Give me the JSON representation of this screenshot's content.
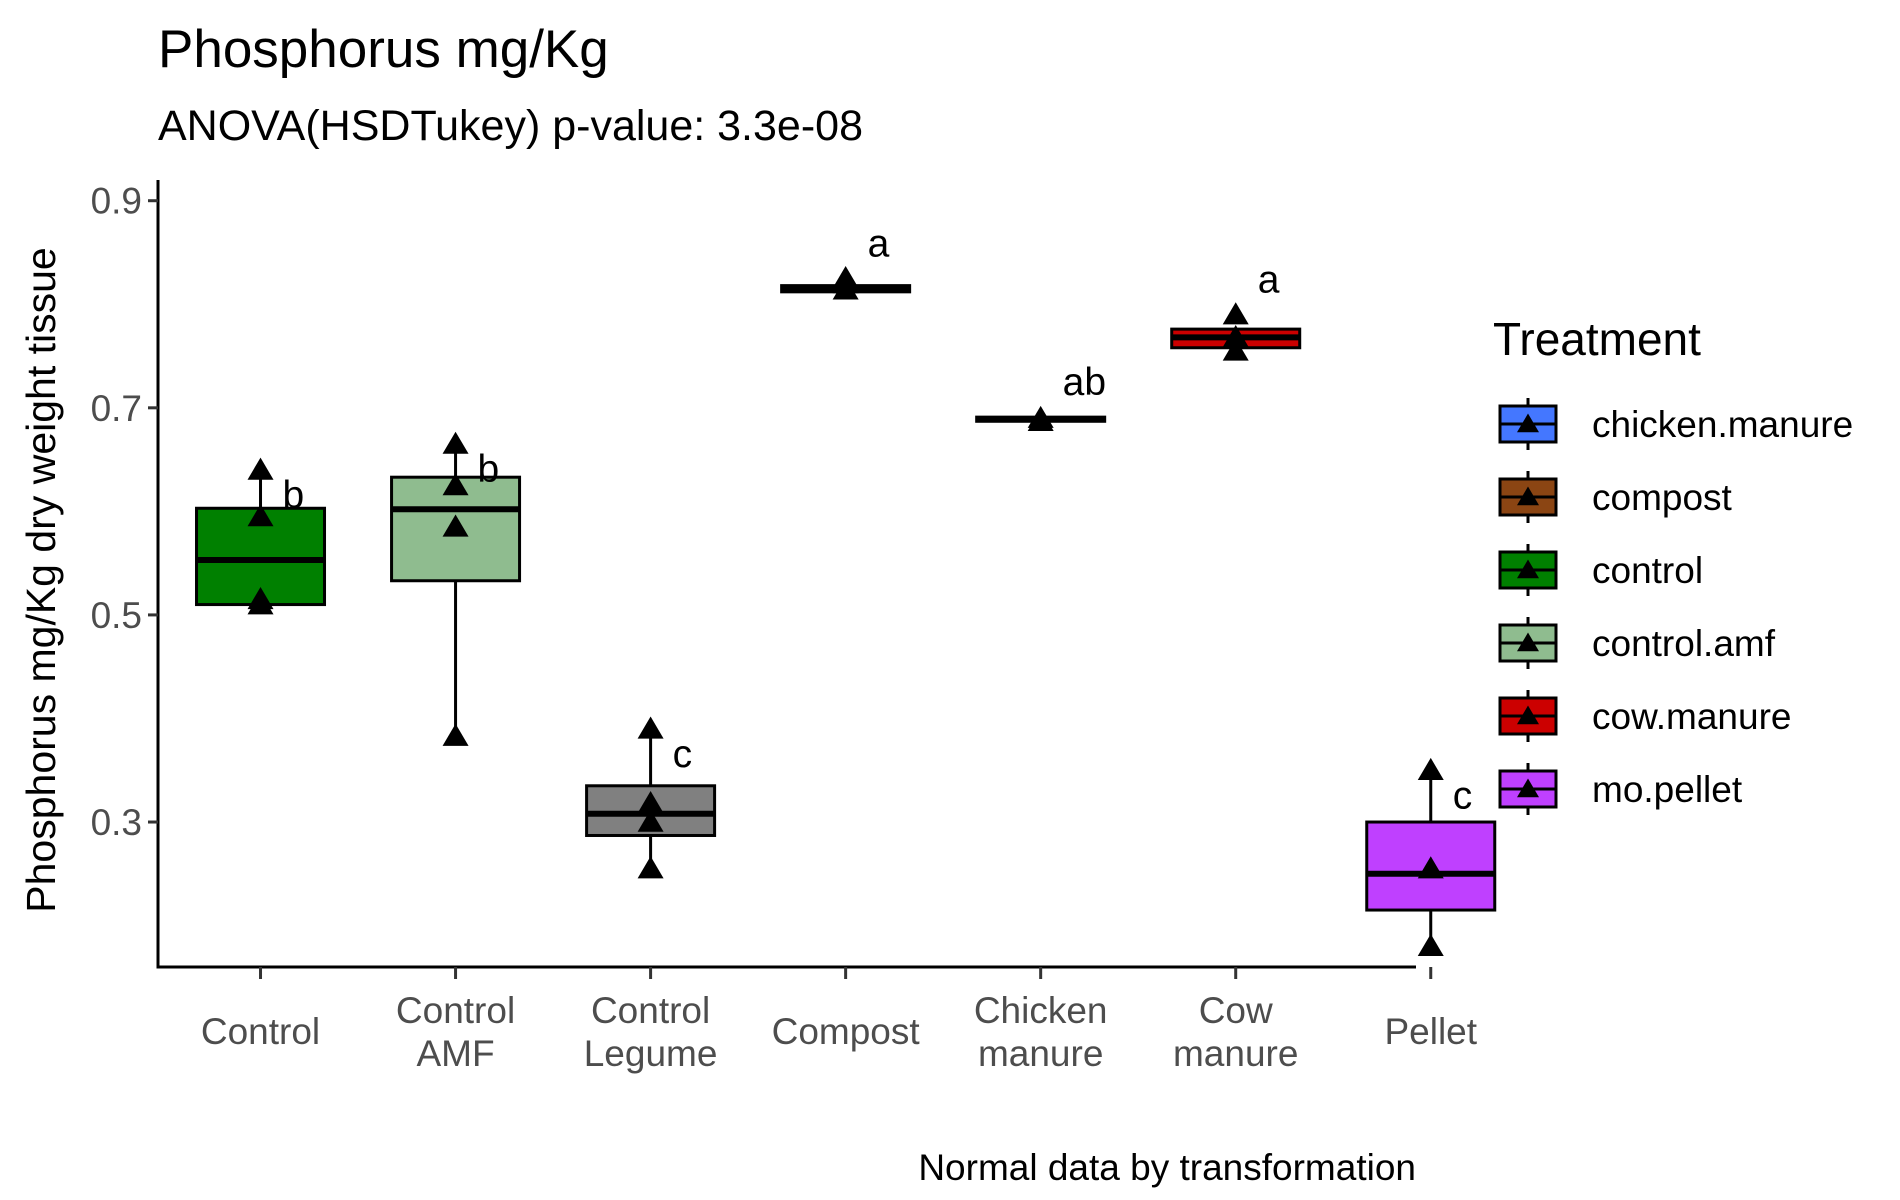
{
  "chart_data": {
    "type": "boxplot",
    "title": "Phosphorus mg/Kg",
    "subtitle": "ANOVA(HSDTukey) p-value: 3.3e-08",
    "xlabel": "",
    "ylabel": "Phosphorus mg/Kg dry weight tissue",
    "caption": "Normal data by transformation",
    "ylim": [
      0.16,
      0.92
    ],
    "yticks": [
      0.3,
      0.5,
      0.7,
      0.9
    ],
    "ytick_labels": [
      "0.3",
      "0.5",
      "0.7",
      "0.9"
    ],
    "grid": false,
    "legend": {
      "title": "Treatment",
      "position": "right",
      "items": [
        {
          "label": "chicken.manure",
          "color": "#4477ff"
        },
        {
          "label": "compost",
          "color": "#8b4513"
        },
        {
          "label": "control",
          "color": "#008000"
        },
        {
          "label": "control.amf",
          "color": "#8fbc8f"
        },
        {
          "label": "cow.manure",
          "color": "#cc0000"
        },
        {
          "label": "mo.pellet",
          "color": "#bf40ff"
        }
      ]
    },
    "groups": [
      {
        "category_lines": [
          "Control"
        ],
        "treatment": "control",
        "color": "#008000",
        "q1": 0.51,
        "median": 0.553,
        "q3": 0.603,
        "whisker_low": 0.51,
        "whisker_high": 0.64,
        "points": [
          0.51,
          0.515,
          0.595,
          0.64
        ],
        "letter": "b"
      },
      {
        "category_lines": [
          "Control",
          "AMF"
        ],
        "treatment": "control.amf",
        "color": "#8fbc8f",
        "q1": 0.533,
        "median": 0.602,
        "q3": 0.633,
        "whisker_low": 0.383,
        "whisker_high": 0.665,
        "points": [
          0.383,
          0.585,
          0.625,
          0.665
        ],
        "letter": "b"
      },
      {
        "category_lines": [
          "Control",
          "Legume"
        ],
        "treatment": "control.legume",
        "color": "#808080",
        "q1": 0.287,
        "median": 0.308,
        "q3": 0.335,
        "whisker_low": 0.255,
        "whisker_high": 0.39,
        "points": [
          0.255,
          0.3,
          0.318,
          0.39
        ],
        "letter": "c"
      },
      {
        "category_lines": [
          "Compost"
        ],
        "treatment": "compost",
        "color": "#8b4513",
        "q1": 0.812,
        "median": 0.815,
        "q3": 0.818,
        "whisker_low": 0.812,
        "whisker_high": 0.818,
        "points": [
          0.814,
          0.82,
          0.825
        ],
        "letter": "a"
      },
      {
        "category_lines": [
          "Chicken",
          "manure"
        ],
        "treatment": "chicken.manure",
        "color": "#4477ff",
        "q1": 0.687,
        "median": 0.689,
        "q3": 0.691,
        "whisker_low": 0.687,
        "whisker_high": 0.691,
        "points": [
          0.687,
          0.69
        ],
        "letter": "ab"
      },
      {
        "category_lines": [
          "Cow",
          "manure"
        ],
        "treatment": "cow.manure",
        "color": "#cc0000",
        "q1": 0.758,
        "median": 0.768,
        "q3": 0.776,
        "whisker_low": 0.758,
        "whisker_high": 0.776,
        "points": [
          0.755,
          0.768,
          0.79
        ],
        "letter": "a"
      },
      {
        "category_lines": [
          "Pellet"
        ],
        "treatment": "mo.pellet",
        "color": "#bf40ff",
        "q1": 0.215,
        "median": 0.25,
        "q3": 0.3,
        "whisker_low": 0.18,
        "whisker_high": 0.35,
        "points": [
          0.18,
          0.255,
          0.35
        ],
        "letter": "c"
      }
    ]
  }
}
